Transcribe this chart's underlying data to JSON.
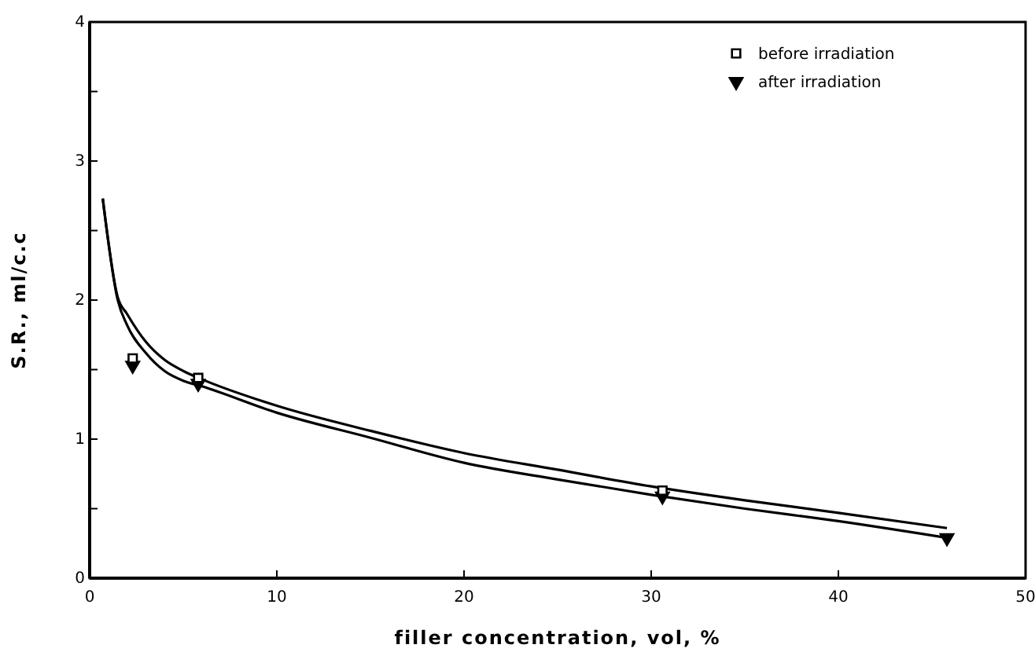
{
  "chart_data": {
    "type": "scatter",
    "xlabel": "filler concentration, vol, %",
    "ylabel": "S.R., ml/c.c",
    "xlim": [
      0,
      50
    ],
    "ylim": [
      0,
      4
    ],
    "xticks": [
      0,
      10,
      20,
      30,
      40,
      50
    ],
    "yticks": [
      0,
      {
        "value": 0.5,
        "label": null
      },
      1,
      {
        "value": 1.5,
        "label": null
      },
      2,
      {
        "value": 2.5,
        "label": null
      },
      3,
      {
        "value": 3.5,
        "label": null
      },
      4
    ],
    "grid": false,
    "legend": "top right",
    "series": [
      {
        "name": "before irradiation",
        "marker": "square",
        "color": "#000000",
        "x": [
          2.3,
          5.8,
          30.6
        ],
        "values": [
          1.58,
          1.44,
          0.63
        ]
      },
      {
        "name": "after irradiation",
        "marker": "triangle",
        "color": "#000000",
        "x": [
          2.3,
          5.8,
          30.6,
          45.8
        ],
        "values": [
          1.53,
          1.4,
          0.59,
          0.29
        ]
      },
      {
        "type": "line",
        "marker": "none",
        "line_style": "solid",
        "color": "#000000",
        "x": [
          0.7,
          1.5,
          2,
          3,
          4,
          5,
          6,
          10,
          15,
          20,
          25,
          30,
          35,
          40,
          45.8
        ],
        "values": [
          2.73,
          2.02,
          1.9,
          1.7,
          1.57,
          1.49,
          1.43,
          1.24,
          1.06,
          0.9,
          0.78,
          0.66,
          0.56,
          0.47,
          0.36
        ]
      },
      {
        "type": "line",
        "marker": "none",
        "line_style": "solid",
        "color": "#000000",
        "x": [
          0.7,
          1.5,
          2,
          3,
          4,
          5,
          6,
          10,
          15,
          20,
          25,
          30,
          35,
          40,
          45.8
        ],
        "values": [
          2.73,
          2.0,
          1.82,
          1.62,
          1.49,
          1.42,
          1.38,
          1.19,
          1.01,
          0.83,
          0.71,
          0.6,
          0.5,
          0.41,
          0.29
        ]
      }
    ]
  }
}
